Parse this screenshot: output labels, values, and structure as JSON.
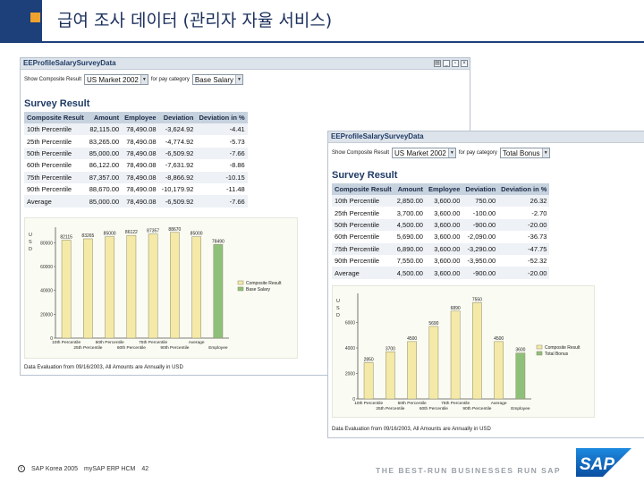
{
  "slide": {
    "title": "급여 조사 데이터 (관리자 자율 서비스)",
    "footer_copyright": "SAP Korea 2005",
    "footer_course": "mySAP ERP HCM",
    "footer_page": "42",
    "tagline": "THE BEST-RUN BUSINESSES RUN SAP",
    "logo_text": "SAP",
    "colors": {
      "header_blue": "#1d3f7a",
      "header_orange": "#f0a22e",
      "bar_yellow": "#f5e9a8",
      "bar_green": "#8fc07a"
    }
  },
  "panel_a": {
    "title": "EEProfileSalarySurveyData",
    "show_label": "Show Composite Result",
    "market_value": "US Market 2002",
    "for_pay_label": "for pay category",
    "pay_value": "Base Salary",
    "section_title": "Survey Result",
    "columns": [
      "Composite Result",
      "Amount",
      "Employee",
      "Deviation",
      "Deviation in %"
    ],
    "rows": [
      [
        "10th Percentile",
        "82,115.00",
        "78,490.08",
        "-3,624.92",
        "-4.41"
      ],
      [
        "25th Percentile",
        "83,265.00",
        "78,490.08",
        "-4,774.92",
        "-5.73"
      ],
      [
        "50th Percentile",
        "85,000.00",
        "78,490.08",
        "-6,509.92",
        "-7.66"
      ],
      [
        "60th Percentile",
        "86,122.00",
        "78,490.08",
        "-7,631.92",
        "-8.86"
      ],
      [
        "75th Percentile",
        "87,357.00",
        "78,490.08",
        "-8,866.92",
        "-10.15"
      ],
      [
        "90th Percentile",
        "88,670.00",
        "78,490.08",
        "-10,179.92",
        "-11.48"
      ],
      [
        "Average",
        "85,000.00",
        "78,490.08",
        "-6,509.92",
        "-7.66"
      ]
    ],
    "footnote": "Data Evaluation from 09/16/2003, All Amounts are Annually in USD"
  },
  "panel_b": {
    "title": "EEProfileSalarySurveyData",
    "show_label": "Show Composite Result",
    "market_value": "US Market 2002",
    "for_pay_label": "for pay category",
    "pay_value": "Total Bonus",
    "section_title": "Survey Result",
    "columns": [
      "Composite Result",
      "Amount",
      "Employee",
      "Deviation",
      "Deviation in %"
    ],
    "rows": [
      [
        "10th Percentile",
        "2,850.00",
        "3,600.00",
        "750.00",
        "26.32"
      ],
      [
        "25th Percentile",
        "3,700.00",
        "3,600.00",
        "-100.00",
        "-2.70"
      ],
      [
        "50th Percentile",
        "4,500.00",
        "3,600.00",
        "-900.00",
        "-20.00"
      ],
      [
        "60th Percentile",
        "5,690.00",
        "3,600.00",
        "-2,090.00",
        "-36.73"
      ],
      [
        "75th Percentile",
        "6,890.00",
        "3,600.00",
        "-3,290.00",
        "-47.75"
      ],
      [
        "90th Percentile",
        "7,550.00",
        "3,600.00",
        "-3,950.00",
        "-52.32"
      ],
      [
        "Average",
        "4,500.00",
        "3,600.00",
        "-900.00",
        "-20.00"
      ]
    ],
    "footnote": "Data Evaluation from 09/16/2003, All Amounts are Annually in USD"
  },
  "chart_data": [
    {
      "type": "bar",
      "ylabel": "USD",
      "categories": [
        "10th Percentile",
        "25th Percentile",
        "50th Percentile",
        "60th Percentile",
        "75th Percentile",
        "90th Percentile",
        "Average",
        "Employee"
      ],
      "values": [
        82115,
        83265,
        85000,
        86122,
        87357,
        88670,
        85000,
        78490
      ],
      "data_labels": [
        "82115",
        "83265",
        "85000",
        "86122",
        "87357",
        "88670",
        "85000",
        "78490"
      ],
      "bar_series": [
        "Composite Result",
        "Composite Result",
        "Composite Result",
        "Composite Result",
        "Composite Result",
        "Composite Result",
        "Composite Result",
        "Base Salary"
      ],
      "legend": [
        "Composite Result",
        "Base Salary"
      ],
      "ylim": [
        0,
        90000
      ],
      "yticks": [
        0,
        20000,
        40000,
        60000,
        80000
      ],
      "ytick_labels": [
        "0",
        "20000",
        "40000",
        "60000",
        "80000"
      ],
      "legend_position": "right",
      "grid": false
    },
    {
      "type": "bar",
      "ylabel": "USD",
      "categories": [
        "10th Percentile",
        "25th Percentile",
        "50th Percentile",
        "60th Percentile",
        "75th Percentile",
        "90th Percentile",
        "Average",
        "Employee"
      ],
      "values": [
        2850,
        3700,
        4500,
        5690,
        6890,
        7550,
        4500,
        3600
      ],
      "data_labels": [
        "2850",
        "3700",
        "4500",
        "5690",
        "6890",
        "7550",
        "4500",
        "3600"
      ],
      "bar_series": [
        "Composite Result",
        "Composite Result",
        "Composite Result",
        "Composite Result",
        "Composite Result",
        "Composite Result",
        "Composite Result",
        "Total Bonus"
      ],
      "legend": [
        "Composite Result",
        "Total Bonus"
      ],
      "ylim": [
        0,
        8000
      ],
      "yticks": [
        0,
        2000,
        4000,
        6000
      ],
      "ytick_labels": [
        "0",
        "2000",
        "4000",
        "6000"
      ],
      "legend_position": "right",
      "grid": false
    }
  ]
}
